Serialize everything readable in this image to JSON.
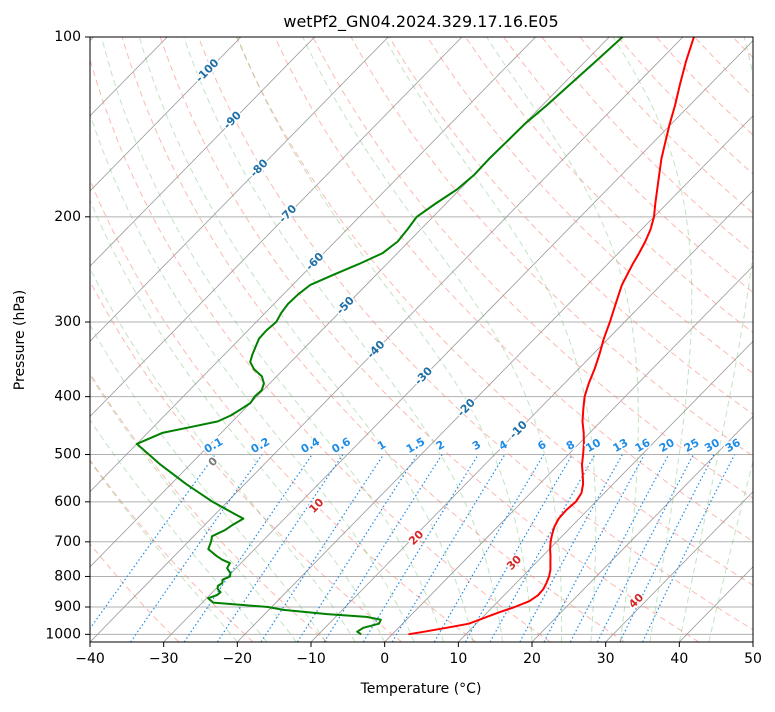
{
  "chart_data": {
    "type": "line",
    "title": "wetPf2_GN04.2024.329.17.16.E05",
    "xlabel": "Temperature (°C)",
    "ylabel": "Pressure (hPa)",
    "xlim": [
      -40,
      50
    ],
    "ylim": [
      1030,
      100
    ],
    "y_scale": "log",
    "grid": true,
    "x_ticks": [
      -40,
      -30,
      -20,
      -10,
      0,
      10,
      20,
      30,
      40,
      50
    ],
    "y_ticks": [
      100,
      200,
      300,
      400,
      500,
      600,
      700,
      800,
      900,
      1000
    ],
    "colors": {
      "temperature": "#ff0000",
      "dewpoint": "#008000",
      "isotherm": "#999999",
      "dry_adiabat": "#fa8072",
      "moist_adiabat": "#66bb66",
      "mixing_ratio": "#1f8ce6",
      "isotherm_label": "#1f6fa6",
      "dry_adiabat_label": "#d62728",
      "zero_label": "#777777"
    },
    "series": [
      {
        "key": "temperature",
        "p": [
          1000,
          990,
          975,
          960,
          940,
          920,
          900,
          880,
          860,
          840,
          820,
          800,
          780,
          760,
          740,
          720,
          700,
          680,
          660,
          640,
          620,
          600,
          580,
          560,
          540,
          520,
          500,
          480,
          460,
          440,
          420,
          400,
          380,
          360,
          340,
          320,
          300,
          280,
          260,
          240,
          230,
          220,
          210,
          200,
          190,
          180,
          170,
          160,
          150,
          140,
          130,
          120,
          110,
          100
        ],
        "t": [
          2.2,
          4.0,
          6.5,
          9.0,
          10.2,
          11.5,
          13.0,
          14.2,
          14.6,
          14.5,
          14.1,
          13.6,
          12.9,
          12.0,
          11.1,
          10.1,
          9.2,
          8.4,
          7.7,
          7.2,
          7.1,
          7.3,
          6.9,
          5.9,
          4.6,
          3.2,
          2.0,
          0.7,
          -0.8,
          -2.5,
          -4.0,
          -5.5,
          -6.7,
          -7.8,
          -9.1,
          -10.6,
          -12.0,
          -13.6,
          -15.3,
          -16.6,
          -17.2,
          -17.9,
          -18.8,
          -20.0,
          -21.6,
          -23.2,
          -24.9,
          -26.7,
          -28.4,
          -30.2,
          -32.0,
          -34.1,
          -36.3,
          -38.5
        ]
      },
      {
        "key": "dewpoint",
        "p": [
          1000,
          990,
          975,
          960,
          945,
          935,
          925,
          910,
          900,
          885,
          870,
          860,
          850,
          840,
          830,
          820,
          810,
          800,
          790,
          775,
          760,
          750,
          740,
          720,
          700,
          685,
          670,
          655,
          640,
          630,
          600,
          560,
          520,
          480,
          460,
          450,
          440,
          430,
          420,
          410,
          400,
          390,
          380,
          370,
          360,
          350,
          340,
          330,
          320,
          310,
          300,
          290,
          280,
          270,
          260,
          250,
          240,
          230,
          220,
          210,
          200,
          190,
          180,
          170,
          160,
          150,
          140,
          130,
          120,
          110,
          100
        ],
        "t": [
          -4.2,
          -5.1,
          -4.8,
          -3.2,
          -3.5,
          -5.8,
          -11.5,
          -18.0,
          -20.5,
          -28.5,
          -29.8,
          -29.0,
          -28.9,
          -29.7,
          -30.1,
          -29.9,
          -30.3,
          -29.7,
          -30.1,
          -31.2,
          -31.5,
          -33.0,
          -34.2,
          -36.3,
          -36.9,
          -37.5,
          -36.6,
          -36.2,
          -35.6,
          -37.2,
          -42.0,
          -48.0,
          -54.0,
          -60.0,
          -58.0,
          -55.0,
          -52.0,
          -51.0,
          -50.5,
          -50.0,
          -50.3,
          -50.2,
          -50.8,
          -52.0,
          -54.0,
          -55.5,
          -56.2,
          -56.8,
          -57.4,
          -57.5,
          -57.3,
          -57.8,
          -58.1,
          -58.0,
          -57.6,
          -55.8,
          -53.8,
          -52.0,
          -51.5,
          -51.8,
          -52.2,
          -51.4,
          -50.4,
          -50.0,
          -50.1,
          -50.0,
          -49.9,
          -49.4,
          -49.0,
          -48.6,
          -48.2
        ]
      }
    ],
    "isotherm_labels": [
      "-100",
      "-90",
      "-80",
      "-70",
      "-60",
      "-50",
      "-40",
      "-30",
      "-20",
      "-10"
    ],
    "mixing_ratio_labels": [
      "0.1",
      "0.2",
      "0.4",
      "0.6",
      "1",
      "1.5",
      "2",
      "3",
      "4",
      "6",
      "8",
      "10",
      "13",
      "16",
      "20",
      "25",
      "30",
      "36"
    ],
    "dry_adiabat_labels": [
      "0",
      "10",
      "20",
      "30",
      "40"
    ]
  }
}
